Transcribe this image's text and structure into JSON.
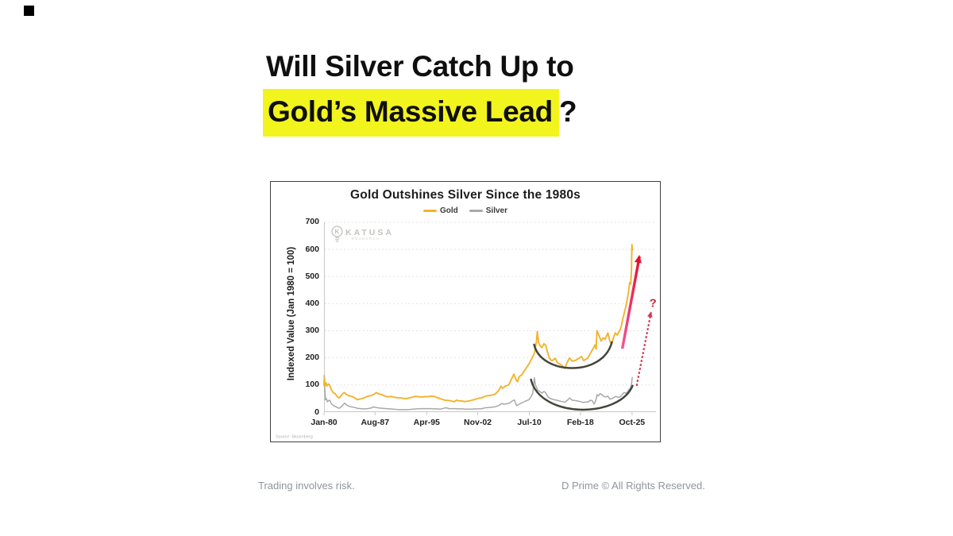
{
  "headline": {
    "line1": "Will Silver Catch Up to",
    "line2_highlight": "Gold’s Massive Lead",
    "line2_suffix": "?"
  },
  "footer": {
    "left": "Trading involves risk.",
    "right": "D Prime © All Rights Reserved."
  },
  "chart": {
    "watermark": {
      "brand": "KATUSA",
      "sub": "RESEARCH"
    },
    "source": "Source: Bloomberg"
  },
  "colors": {
    "highlight": "#F2F41E",
    "gold": "#F2B32C",
    "silver": "#A8A8A8",
    "arc": "#45453B",
    "arrow_gradient_bottom": "#F2549B",
    "arrow_gradient_top": "#E4132C",
    "arrow_dotted": "#D13A52",
    "question_mark": "#C92B3C",
    "grid": "#DEDEDE",
    "axis": "#C8C8C8"
  },
  "chart_data": {
    "type": "line",
    "title": "Gold Outshines Silver Since the 1980s",
    "ylabel": "Indexed Value (Jan 1980 = 100)",
    "xlabel": "",
    "grid": "dotted horizontal",
    "legend_position": "top center",
    "xlim": [
      1980.04,
      2029.35
    ],
    "ylim": [
      0,
      720
    ],
    "y_ticks": [
      0,
      100,
      200,
      300,
      400,
      500,
      600,
      700
    ],
    "x_tick_labels": [
      "Jan-80",
      "Aug-87",
      "Apr-95",
      "Nov-02",
      "Jul-10",
      "Feb-18",
      "Oct-25"
    ],
    "x_tick_years": [
      1980.04,
      1987.62,
      1995.29,
      2002.87,
      2010.54,
      2018.12,
      2025.79
    ],
    "series": [
      {
        "name": "Gold",
        "color": "#F2B32C",
        "width": 1.9,
        "points": [
          [
            1980.04,
            100
          ],
          [
            1980.1,
            128
          ],
          [
            1980.2,
            96
          ],
          [
            1980.35,
            108
          ],
          [
            1980.5,
            97
          ],
          [
            1980.7,
            104
          ],
          [
            1980.9,
            98
          ],
          [
            1981.1,
            84
          ],
          [
            1981.4,
            72
          ],
          [
            1981.7,
            68
          ],
          [
            1982.0,
            57
          ],
          [
            1982.3,
            52
          ],
          [
            1982.6,
            62
          ],
          [
            1982.9,
            70
          ],
          [
            1983.1,
            72
          ],
          [
            1983.4,
            64
          ],
          [
            1983.8,
            60
          ],
          [
            1984.2,
            58
          ],
          [
            1984.6,
            52
          ],
          [
            1985.0,
            46
          ],
          [
            1985.4,
            48
          ],
          [
            1985.8,
            51
          ],
          [
            1986.2,
            55
          ],
          [
            1986.6,
            59
          ],
          [
            1987.0,
            61
          ],
          [
            1987.4,
            65
          ],
          [
            1987.8,
            72
          ],
          [
            1988.2,
            67
          ],
          [
            1988.6,
            65
          ],
          [
            1989.0,
            60
          ],
          [
            1989.5,
            56
          ],
          [
            1990.0,
            58
          ],
          [
            1990.5,
            55
          ],
          [
            1991.0,
            53
          ],
          [
            1991.5,
            52
          ],
          [
            1992.0,
            50
          ],
          [
            1992.5,
            51
          ],
          [
            1993.0,
            54
          ],
          [
            1993.5,
            58
          ],
          [
            1994.0,
            57
          ],
          [
            1994.5,
            56
          ],
          [
            1995.0,
            57
          ],
          [
            1995.5,
            57
          ],
          [
            1996.0,
            59
          ],
          [
            1996.5,
            57
          ],
          [
            1997.0,
            52
          ],
          [
            1997.5,
            48
          ],
          [
            1998.0,
            44
          ],
          [
            1998.5,
            43
          ],
          [
            1999.0,
            41
          ],
          [
            1999.4,
            38
          ],
          [
            1999.7,
            44
          ],
          [
            2000.0,
            42
          ],
          [
            2000.5,
            41
          ],
          [
            2001.0,
            39
          ],
          [
            2001.5,
            41
          ],
          [
            2002.0,
            44
          ],
          [
            2002.5,
            47
          ],
          [
            2003.0,
            51
          ],
          [
            2003.5,
            53
          ],
          [
            2004.0,
            59
          ],
          [
            2004.5,
            61
          ],
          [
            2005.0,
            63
          ],
          [
            2005.5,
            67
          ],
          [
            2006.0,
            80
          ],
          [
            2006.3,
            95
          ],
          [
            2006.6,
            88
          ],
          [
            2007.0,
            96
          ],
          [
            2007.5,
            101
          ],
          [
            2008.0,
            128
          ],
          [
            2008.25,
            140
          ],
          [
            2008.6,
            117
          ],
          [
            2008.8,
            112
          ],
          [
            2009.0,
            130
          ],
          [
            2009.5,
            140
          ],
          [
            2010.0,
            160
          ],
          [
            2010.5,
            178
          ],
          [
            2011.0,
            202
          ],
          [
            2011.3,
            218
          ],
          [
            2011.6,
            262
          ],
          [
            2011.72,
            297
          ],
          [
            2011.9,
            256
          ],
          [
            2012.1,
            246
          ],
          [
            2012.4,
            238
          ],
          [
            2012.7,
            252
          ],
          [
            2012.95,
            247
          ],
          [
            2013.2,
            225
          ],
          [
            2013.5,
            200
          ],
          [
            2013.8,
            190
          ],
          [
            2014.1,
            192
          ],
          [
            2014.4,
            198
          ],
          [
            2014.7,
            182
          ],
          [
            2015.0,
            178
          ],
          [
            2015.4,
            172
          ],
          [
            2015.8,
            161
          ],
          [
            2016.1,
            180
          ],
          [
            2016.5,
            200
          ],
          [
            2016.9,
            188
          ],
          [
            2017.3,
            190
          ],
          [
            2017.7,
            195
          ],
          [
            2018.0,
            200
          ],
          [
            2018.3,
            205
          ],
          [
            2018.6,
            190
          ],
          [
            2018.9,
            194
          ],
          [
            2019.2,
            200
          ],
          [
            2019.5,
            212
          ],
          [
            2019.8,
            225
          ],
          [
            2020.1,
            238
          ],
          [
            2020.3,
            248
          ],
          [
            2020.45,
            232
          ],
          [
            2020.6,
            300
          ],
          [
            2020.8,
            288
          ],
          [
            2021.0,
            275
          ],
          [
            2021.2,
            262
          ],
          [
            2021.5,
            274
          ],
          [
            2021.8,
            268
          ],
          [
            2022.0,
            280
          ],
          [
            2022.2,
            292
          ],
          [
            2022.5,
            262
          ],
          [
            2022.75,
            250
          ],
          [
            2023.0,
            272
          ],
          [
            2023.3,
            292
          ],
          [
            2023.6,
            284
          ],
          [
            2023.9,
            298
          ],
          [
            2024.1,
            308
          ],
          [
            2024.4,
            340
          ],
          [
            2024.7,
            372
          ],
          [
            2024.9,
            392
          ],
          [
            2025.1,
            420
          ],
          [
            2025.3,
            448
          ],
          [
            2025.45,
            478
          ],
          [
            2025.6,
            472
          ],
          [
            2025.7,
            520
          ],
          [
            2025.78,
            618
          ],
          [
            2025.85,
            598
          ]
        ]
      },
      {
        "name": "Silver",
        "color": "#A8A8A8",
        "width": 1.5,
        "points": [
          [
            1980.04,
            98
          ],
          [
            1980.08,
            135
          ],
          [
            1980.15,
            92
          ],
          [
            1980.25,
            45
          ],
          [
            1980.4,
            50
          ],
          [
            1980.55,
            38
          ],
          [
            1980.7,
            42
          ],
          [
            1980.9,
            44
          ],
          [
            1981.1,
            32
          ],
          [
            1981.4,
            25
          ],
          [
            1981.7,
            21
          ],
          [
            1982.0,
            17
          ],
          [
            1982.3,
            14
          ],
          [
            1982.6,
            20
          ],
          [
            1982.9,
            28
          ],
          [
            1983.1,
            33
          ],
          [
            1983.4,
            26
          ],
          [
            1983.8,
            21
          ],
          [
            1984.2,
            19
          ],
          [
            1984.6,
            17
          ],
          [
            1985.0,
            14
          ],
          [
            1985.5,
            13
          ],
          [
            1986.0,
            12
          ],
          [
            1986.5,
            13
          ],
          [
            1987.0,
            15
          ],
          [
            1987.4,
            19
          ],
          [
            1987.8,
            17
          ],
          [
            1988.3,
            15
          ],
          [
            1988.8,
            14
          ],
          [
            1989.3,
            13
          ],
          [
            1989.8,
            12
          ],
          [
            1990.3,
            11
          ],
          [
            1990.8,
            10
          ],
          [
            1991.3,
            9
          ],
          [
            1991.8,
            9
          ],
          [
            1992.3,
            9
          ],
          [
            1992.8,
            10
          ],
          [
            1993.3,
            11
          ],
          [
            1993.8,
            12
          ],
          [
            1994.3,
            13
          ],
          [
            1994.8,
            13
          ],
          [
            1995.3,
            13
          ],
          [
            1995.8,
            13
          ],
          [
            1996.3,
            12
          ],
          [
            1996.8,
            12
          ],
          [
            1997.3,
            11
          ],
          [
            1997.8,
            14
          ],
          [
            1998.2,
            16
          ],
          [
            1998.6,
            13
          ],
          [
            1999.0,
            13
          ],
          [
            1999.5,
            13
          ],
          [
            2000.0,
            12
          ],
          [
            2000.5,
            12
          ],
          [
            2001.0,
            11
          ],
          [
            2001.5,
            11
          ],
          [
            2002.0,
            11
          ],
          [
            2002.5,
            12
          ],
          [
            2003.0,
            12
          ],
          [
            2003.5,
            13
          ],
          [
            2004.0,
            16
          ],
          [
            2004.5,
            17
          ],
          [
            2005.0,
            18
          ],
          [
            2005.5,
            20
          ],
          [
            2006.0,
            24
          ],
          [
            2006.4,
            32
          ],
          [
            2006.8,
            29
          ],
          [
            2007.2,
            31
          ],
          [
            2007.6,
            33
          ],
          [
            2008.0,
            41
          ],
          [
            2008.3,
            45
          ],
          [
            2008.65,
            24
          ],
          [
            2009.0,
            29
          ],
          [
            2009.5,
            35
          ],
          [
            2010.0,
            41
          ],
          [
            2010.5,
            46
          ],
          [
            2010.8,
            58
          ],
          [
            2011.05,
            70
          ],
          [
            2011.28,
            126
          ],
          [
            2011.45,
            100
          ],
          [
            2011.6,
            92
          ],
          [
            2011.8,
            80
          ],
          [
            2012.1,
            76
          ],
          [
            2012.4,
            70
          ],
          [
            2012.7,
            76
          ],
          [
            2012.95,
            72
          ],
          [
            2013.2,
            60
          ],
          [
            2013.5,
            52
          ],
          [
            2013.8,
            49
          ],
          [
            2014.2,
            46
          ],
          [
            2014.6,
            44
          ],
          [
            2015.0,
            41
          ],
          [
            2015.4,
            39
          ],
          [
            2015.8,
            36
          ],
          [
            2016.2,
            44
          ],
          [
            2016.5,
            52
          ],
          [
            2016.9,
            44
          ],
          [
            2017.3,
            43
          ],
          [
            2017.7,
            41
          ],
          [
            2018.1,
            39
          ],
          [
            2018.5,
            36
          ],
          [
            2018.9,
            37
          ],
          [
            2019.3,
            38
          ],
          [
            2019.6,
            44
          ],
          [
            2019.9,
            42
          ],
          [
            2020.15,
            30
          ],
          [
            2020.4,
            42
          ],
          [
            2020.6,
            64
          ],
          [
            2020.8,
            60
          ],
          [
            2021.05,
            68
          ],
          [
            2021.3,
            64
          ],
          [
            2021.6,
            58
          ],
          [
            2021.9,
            56
          ],
          [
            2022.2,
            59
          ],
          [
            2022.5,
            48
          ],
          [
            2022.8,
            50
          ],
          [
            2023.1,
            54
          ],
          [
            2023.4,
            58
          ],
          [
            2023.7,
            55
          ],
          [
            2024.0,
            56
          ],
          [
            2024.3,
            64
          ],
          [
            2024.6,
            72
          ],
          [
            2024.9,
            70
          ],
          [
            2025.1,
            74
          ],
          [
            2025.35,
            84
          ],
          [
            2025.55,
            88
          ],
          [
            2025.7,
            100
          ],
          [
            2025.82,
            128
          ]
        ]
      }
    ],
    "annotations": {
      "arcs": [
        {
          "name": "gold-basing-arc",
          "path": [
            [
              2011.25,
              249
            ],
            [
              2012.3,
              135
            ],
            [
              2021.5,
              129
            ],
            [
              2022.8,
              258
            ]
          ]
        },
        {
          "name": "silver-basing-arc",
          "path": [
            [
              2010.78,
              120
            ],
            [
              2012.2,
              -24
            ],
            [
              2023.8,
              -24
            ],
            [
              2025.87,
              97
            ]
          ]
        }
      ],
      "arrows": [
        {
          "name": "gold-breakout-arrow",
          "style": "solid",
          "from": [
            2024.35,
            234
          ],
          "to": [
            2026.9,
            574
          ]
        },
        {
          "name": "silver-question-arrow",
          "style": "dotted",
          "from": [
            2026.5,
            100
          ],
          "to": [
            2028.6,
            365
          ]
        }
      ],
      "question_mark": {
        "label": "?",
        "x": 2028.9,
        "y": 402
      }
    }
  }
}
